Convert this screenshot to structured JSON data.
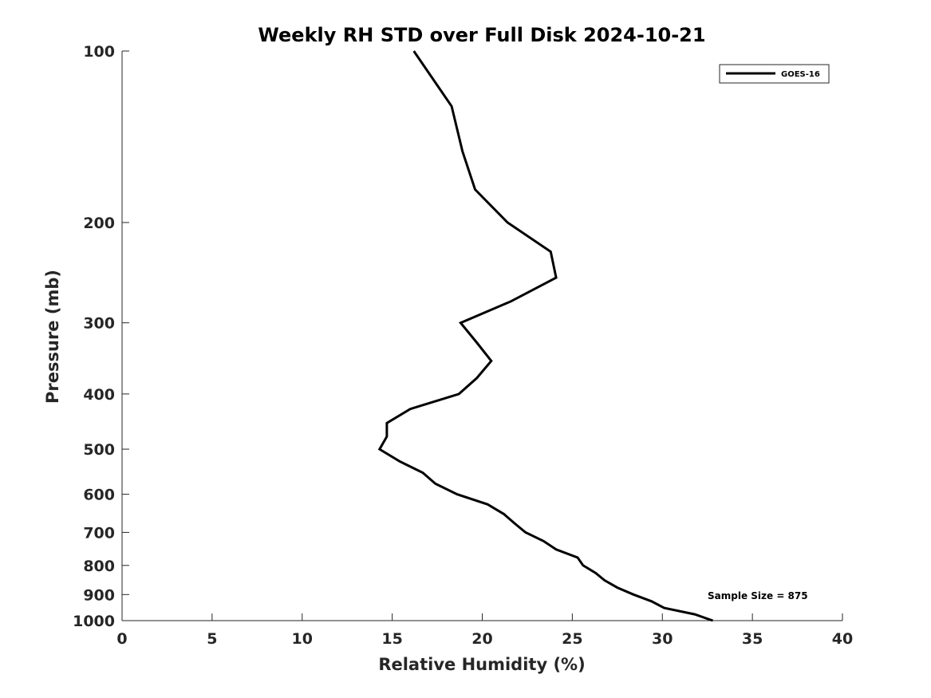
{
  "chart_data": {
    "type": "line",
    "title": "Weekly RH STD over Full Disk 2024-10-21",
    "xlabel": "Relative Humidity (%)",
    "ylabel": "Pressure (mb)",
    "xlim": [
      0,
      40
    ],
    "ylim": [
      100,
      1000
    ],
    "y_scale": "log",
    "y_reversed": true,
    "grid": false,
    "x_ticks": [
      0,
      5,
      10,
      15,
      20,
      25,
      30,
      35,
      40
    ],
    "y_ticks": [
      100,
      200,
      300,
      400,
      500,
      600,
      700,
      800,
      900,
      1000
    ],
    "legend": {
      "position": "top-right",
      "entries": [
        "GOES-16"
      ]
    },
    "annotations": [
      "Sample Size = 875"
    ],
    "series": [
      {
        "name": "GOES-16",
        "color": "#000000",
        "pressure": [
          100,
          125,
          150,
          175,
          200,
          225,
          250,
          275,
          300,
          325,
          350,
          375,
          400,
          425,
          450,
          475,
          500,
          525,
          550,
          575,
          600,
          625,
          650,
          675,
          700,
          725,
          750,
          775,
          800,
          825,
          850,
          875,
          900,
          925,
          950,
          975,
          1000
        ],
        "values": [
          16.2,
          18.3,
          18.9,
          19.6,
          21.4,
          23.8,
          24.1,
          21.6,
          18.8,
          19.7,
          20.5,
          19.7,
          18.7,
          16.0,
          14.7,
          14.7,
          14.3,
          15.4,
          16.7,
          17.4,
          18.6,
          20.3,
          21.2,
          21.8,
          22.4,
          23.4,
          24.1,
          25.3,
          25.6,
          26.3,
          26.8,
          27.5,
          28.4,
          29.4,
          30.1,
          31.8,
          32.8
        ]
      }
    ]
  }
}
